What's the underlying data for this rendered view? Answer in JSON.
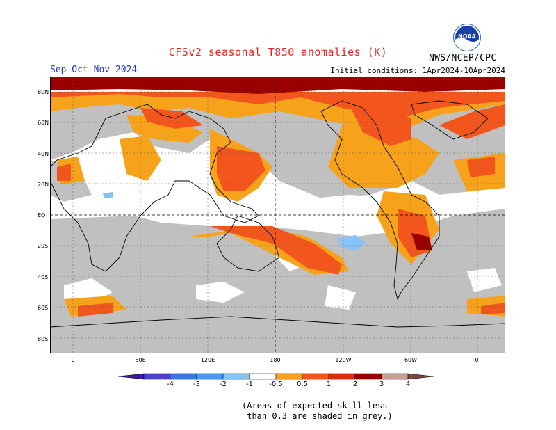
{
  "title": "CFSv2 seasonal T850 anomalies (K)",
  "period": "Sep-Oct-Nov 2024",
  "initial_conditions": "Initial conditions: 1Apr2024-10Apr2024",
  "agency": "NWS/NCEP/CPC",
  "logo_text": "NOAA",
  "lat_labels": [
    "80N",
    "60N",
    "40N",
    "20N",
    "EQ",
    "20S",
    "40S",
    "60S",
    "80S"
  ],
  "lon_labels": [
    "0",
    "60E",
    "120E",
    "180",
    "120W",
    "60W",
    "0"
  ],
  "colorbar": {
    "labels": [
      "-4",
      "-3",
      "-2",
      "-1",
      "-0.5",
      "0.5",
      "1",
      "2",
      "3",
      "4"
    ],
    "colors": [
      "#3b17a6",
      "#4a3fd0",
      "#3f73e6",
      "#4f96ee",
      "#88c3f5",
      "#ffffff",
      "#f6a21a",
      "#f2561c",
      "#de2a12",
      "#9a0000",
      "#c9a090",
      "#7a4840"
    ]
  },
  "colors": {
    "skill_grey": "#c0c0c0",
    "anomaly_05_1": "#f6a21a",
    "anomaly_1_2": "#f2561c",
    "anomaly_2_3": "#de2a12",
    "anomaly_3_4": "#9a0000",
    "cool_anomaly": "#88c3f5"
  },
  "note": "(Areas of expected skill less\n than 0.3 are shaded in grey.)"
}
